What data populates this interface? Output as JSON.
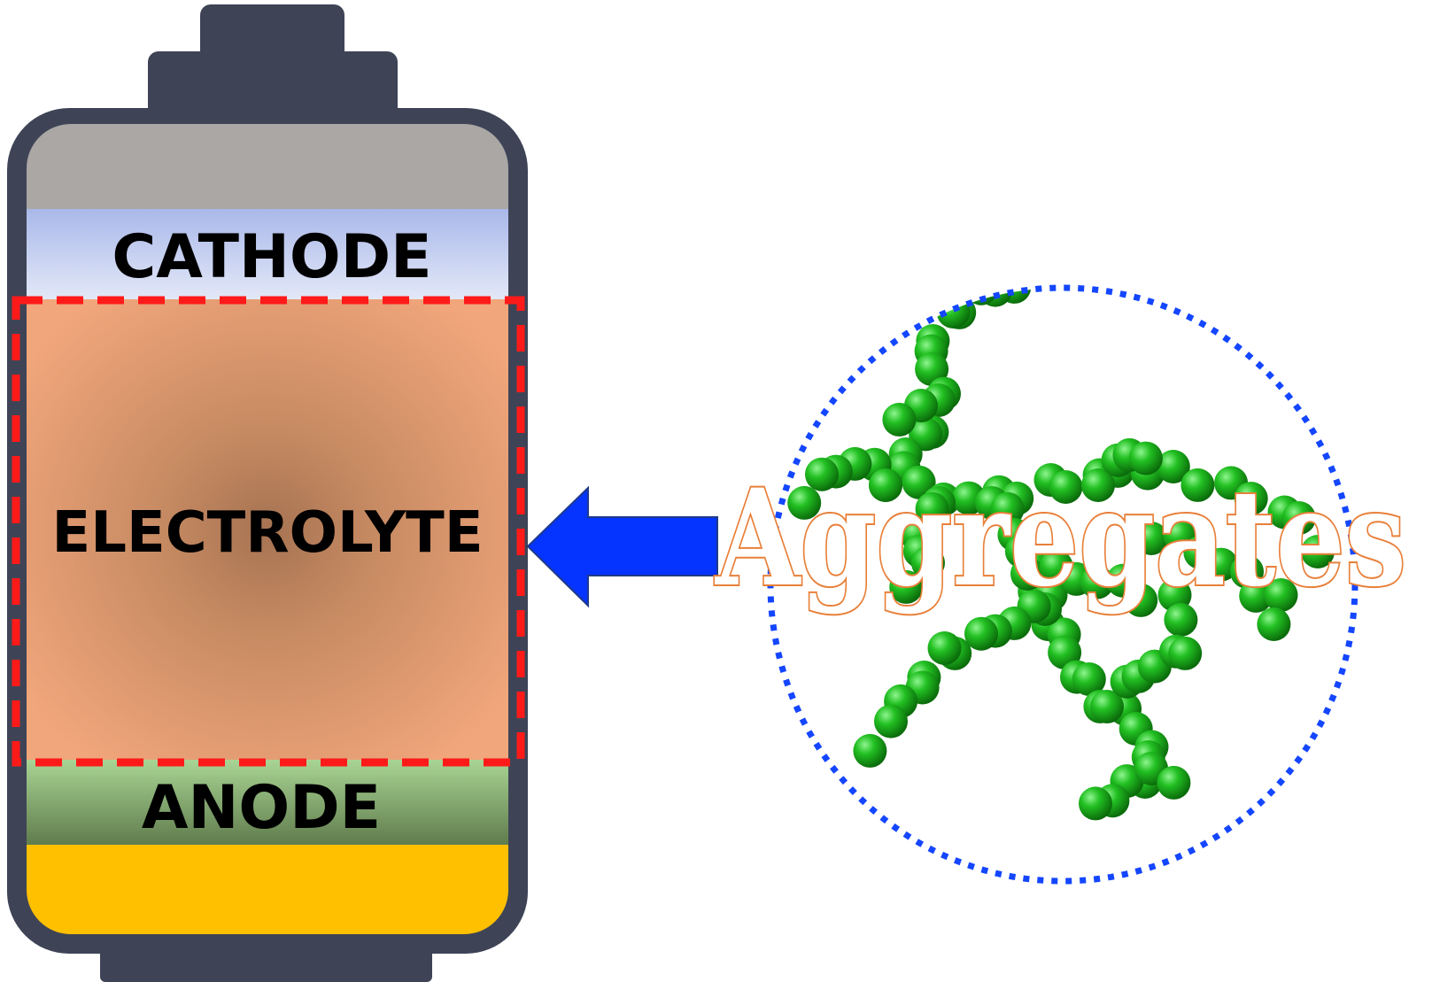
{
  "battery": {
    "cathode_label": "CATHODE",
    "electrolyte_label": "ELECTROLYTE",
    "anode_label": "ANODE"
  },
  "aggregates": {
    "label": "Aggregates"
  },
  "colors": {
    "battery_casing": "#3e4456",
    "cathode_current_collector": "#aaa7a5",
    "cathode_top": "#a9b8e9",
    "cathode_bottom": "#e4e9f8",
    "electrolyte_center": "#a67352",
    "electrolyte_edge": "#f2a67b",
    "anode_top": "#a9d494",
    "anode_bottom": "#5e7a4b",
    "anode_current_collector": "#ffc000",
    "dashed_highlight": "#ff1a1a",
    "arrow": "#0533ff",
    "circle_outline": "#1446ff",
    "particle": "#1fb31f",
    "label_outline": "#e8803a"
  },
  "icons": {
    "arrow": "left-arrow-icon",
    "particles": "particle-cluster"
  }
}
